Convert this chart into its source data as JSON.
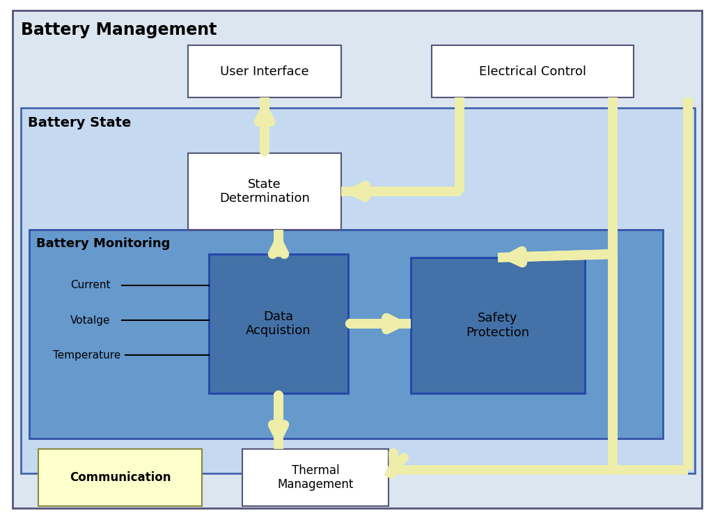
{
  "bg_outer": "#dce6f1",
  "bg_battery_state": "#c5d9f1",
  "bg_battery_monitoring": "#6699cc",
  "bg_dark_box": "#4472a8",
  "box_white": "#ffffff",
  "box_yellow": "#ffffcc",
  "arrow_color": "#eeeeaa",
  "arrow_edge": "#cccc88",
  "label_battery_management": "Battery Management",
  "label_battery_state": "Battery State",
  "label_battery_monitoring": "Battery Monitoring",
  "label_user_interface": "User Interface",
  "label_electrical_control": "Electrical Control",
  "label_state_determination": "State\nDetermination",
  "label_data_acquisition": "Data\nAcquistion",
  "label_safety_protection": "Safety\nProtection",
  "label_thermal_management": "Thermal\nManagement",
  "label_communication": "Communication",
  "label_current": "Current",
  "label_voltage": "Votalge",
  "label_temperature": "Temperature"
}
